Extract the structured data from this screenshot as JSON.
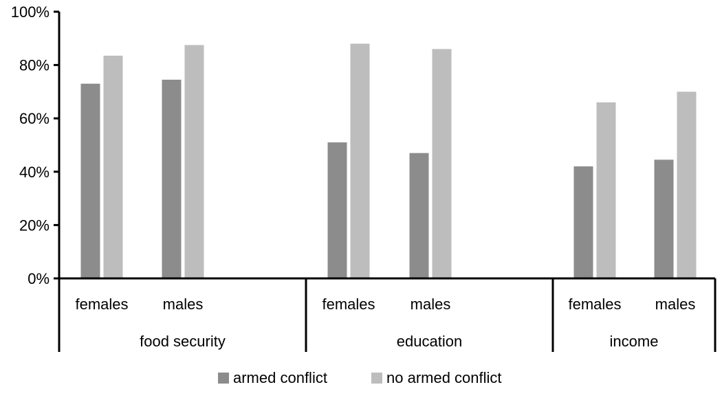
{
  "chart_data": {
    "type": "bar",
    "groups": [
      {
        "label": "food security",
        "subcategories": [
          "females",
          "males"
        ]
      },
      {
        "label": "education",
        "subcategories": [
          "females",
          "males"
        ]
      },
      {
        "label": "income",
        "subcategories": [
          "females",
          "males"
        ]
      }
    ],
    "series": [
      {
        "name": "armed conflict",
        "color": "#8c8c8c",
        "values": [
          73,
          74.5,
          51,
          47,
          42,
          44.5
        ]
      },
      {
        "name": "no armed conflict",
        "color": "#bdbdbd",
        "values": [
          83.5,
          87.5,
          88,
          86,
          66,
          70
        ]
      }
    ],
    "y_ticks": [
      "0%",
      "20%",
      "40%",
      "60%",
      "80%",
      "100%"
    ],
    "ylim": [
      0,
      100
    ],
    "title": "",
    "xlabel": "",
    "ylabel": "",
    "grid": false,
    "legend_position": "bottom"
  }
}
